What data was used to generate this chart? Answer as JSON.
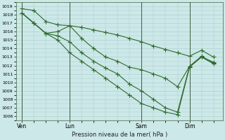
{
  "title": "Pression niveau de la mer( hPa )",
  "ylabel_ticks": [
    1006,
    1007,
    1008,
    1009,
    1010,
    1011,
    1012,
    1013,
    1014,
    1015,
    1016,
    1017,
    1018,
    1019
  ],
  "ylim": [
    1005.5,
    1019.5
  ],
  "xtick_labels": [
    "Ven",
    "Lun",
    "Sam",
    "Dim"
  ],
  "xtick_positions": [
    0,
    4,
    10,
    14
  ],
  "xlim": [
    -0.5,
    16.8
  ],
  "background_color": "#cce8e8",
  "grid_color": "#aacccc",
  "line_color": "#2d6b2d",
  "vlines_x": [
    0,
    4,
    10,
    14
  ],
  "marker": "+",
  "markersize": 4,
  "linewidth": 0.8,
  "lines_x": [
    [
      0,
      1,
      2,
      3,
      4,
      5,
      6,
      7,
      8,
      9,
      10,
      11,
      12,
      13,
      14,
      15,
      16
    ],
    [
      0,
      1,
      2,
      3,
      4,
      5,
      6,
      7,
      8,
      9,
      10,
      11,
      12,
      13,
      14,
      15,
      16
    ],
    [
      0,
      1,
      2,
      3,
      4,
      5,
      6,
      7,
      8,
      9,
      10,
      11,
      12,
      13,
      14,
      15,
      16
    ],
    [
      0,
      1,
      2,
      3,
      4,
      5,
      6,
      7,
      8,
      9,
      10,
      11,
      12,
      13,
      14,
      15,
      16
    ]
  ],
  "lines_y": [
    [
      1018.7,
      1018.5,
      1017.2,
      1016.8,
      1016.7,
      1016.5,
      1016.2,
      1015.9,
      1015.6,
      1015.2,
      1014.8,
      1014.3,
      1013.9,
      1013.5,
      1013.1,
      1013.8,
      1013.0
    ],
    [
      1018.2,
      1017.0,
      1015.8,
      1016.0,
      1016.7,
      1015.2,
      1014.0,
      1013.0,
      1012.5,
      1011.8,
      1011.5,
      1011.0,
      1010.5,
      1009.5,
      1011.9,
      1013.0,
      1012.4
    ],
    [
      1018.2,
      1017.0,
      1015.8,
      1015.5,
      1014.8,
      1013.5,
      1012.5,
      1011.7,
      1011.0,
      1009.8,
      1009.0,
      1008.0,
      1007.0,
      1006.5,
      1011.9,
      1013.1,
      1012.3
    ],
    [
      1018.2,
      1017.0,
      1015.8,
      1015.0,
      1013.5,
      1012.5,
      1011.5,
      1010.5,
      1009.5,
      1008.5,
      1007.5,
      1007.0,
      1006.5,
      1006.2,
      1011.8,
      1013.0,
      1012.2
    ]
  ]
}
